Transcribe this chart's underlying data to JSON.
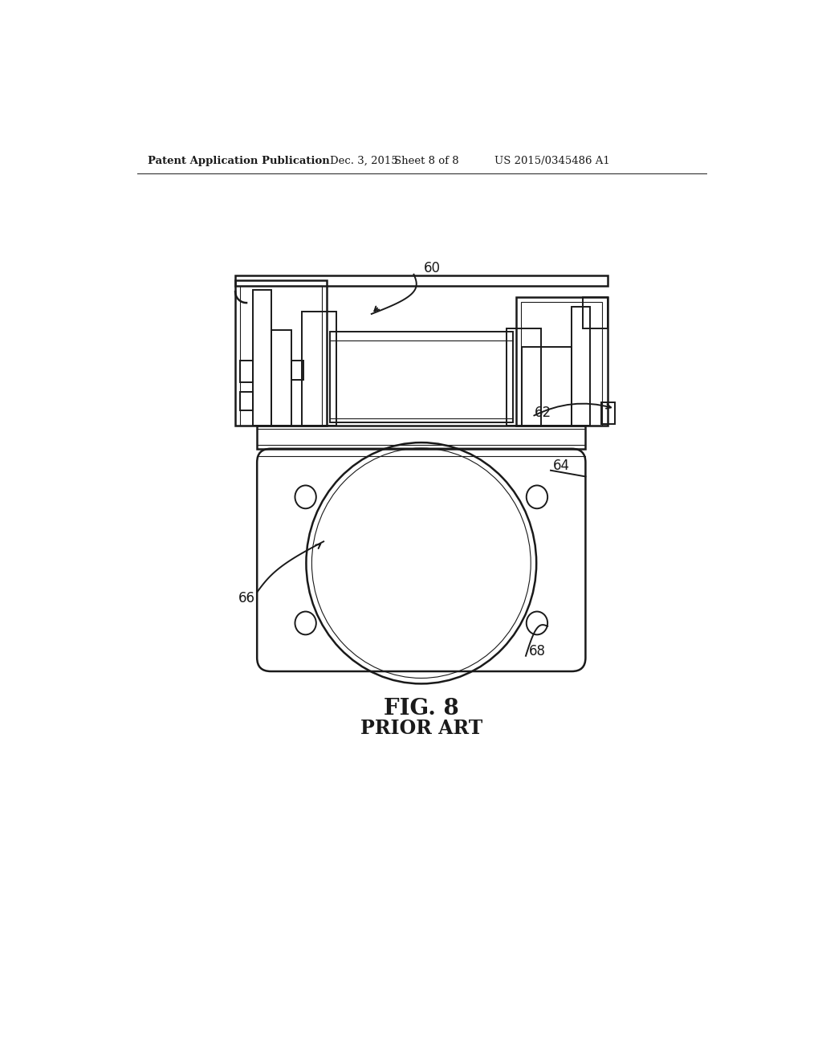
{
  "bg_color": "#ffffff",
  "line_color": "#1a1a1a",
  "header_text": "Patent Application Publication",
  "header_date": "Dec. 3, 2015",
  "header_sheet": "Sheet 8 of 8",
  "header_patent": "US 2015/0345486 A1",
  "fig_label": "FIG. 8",
  "fig_sublabel": "PRIOR ART",
  "label_60": "60",
  "label_62": "62",
  "label_64": "64",
  "label_66": "66",
  "label_68": "68",
  "lw": 1.4,
  "lw_thin": 0.8,
  "lw_thick": 1.8
}
